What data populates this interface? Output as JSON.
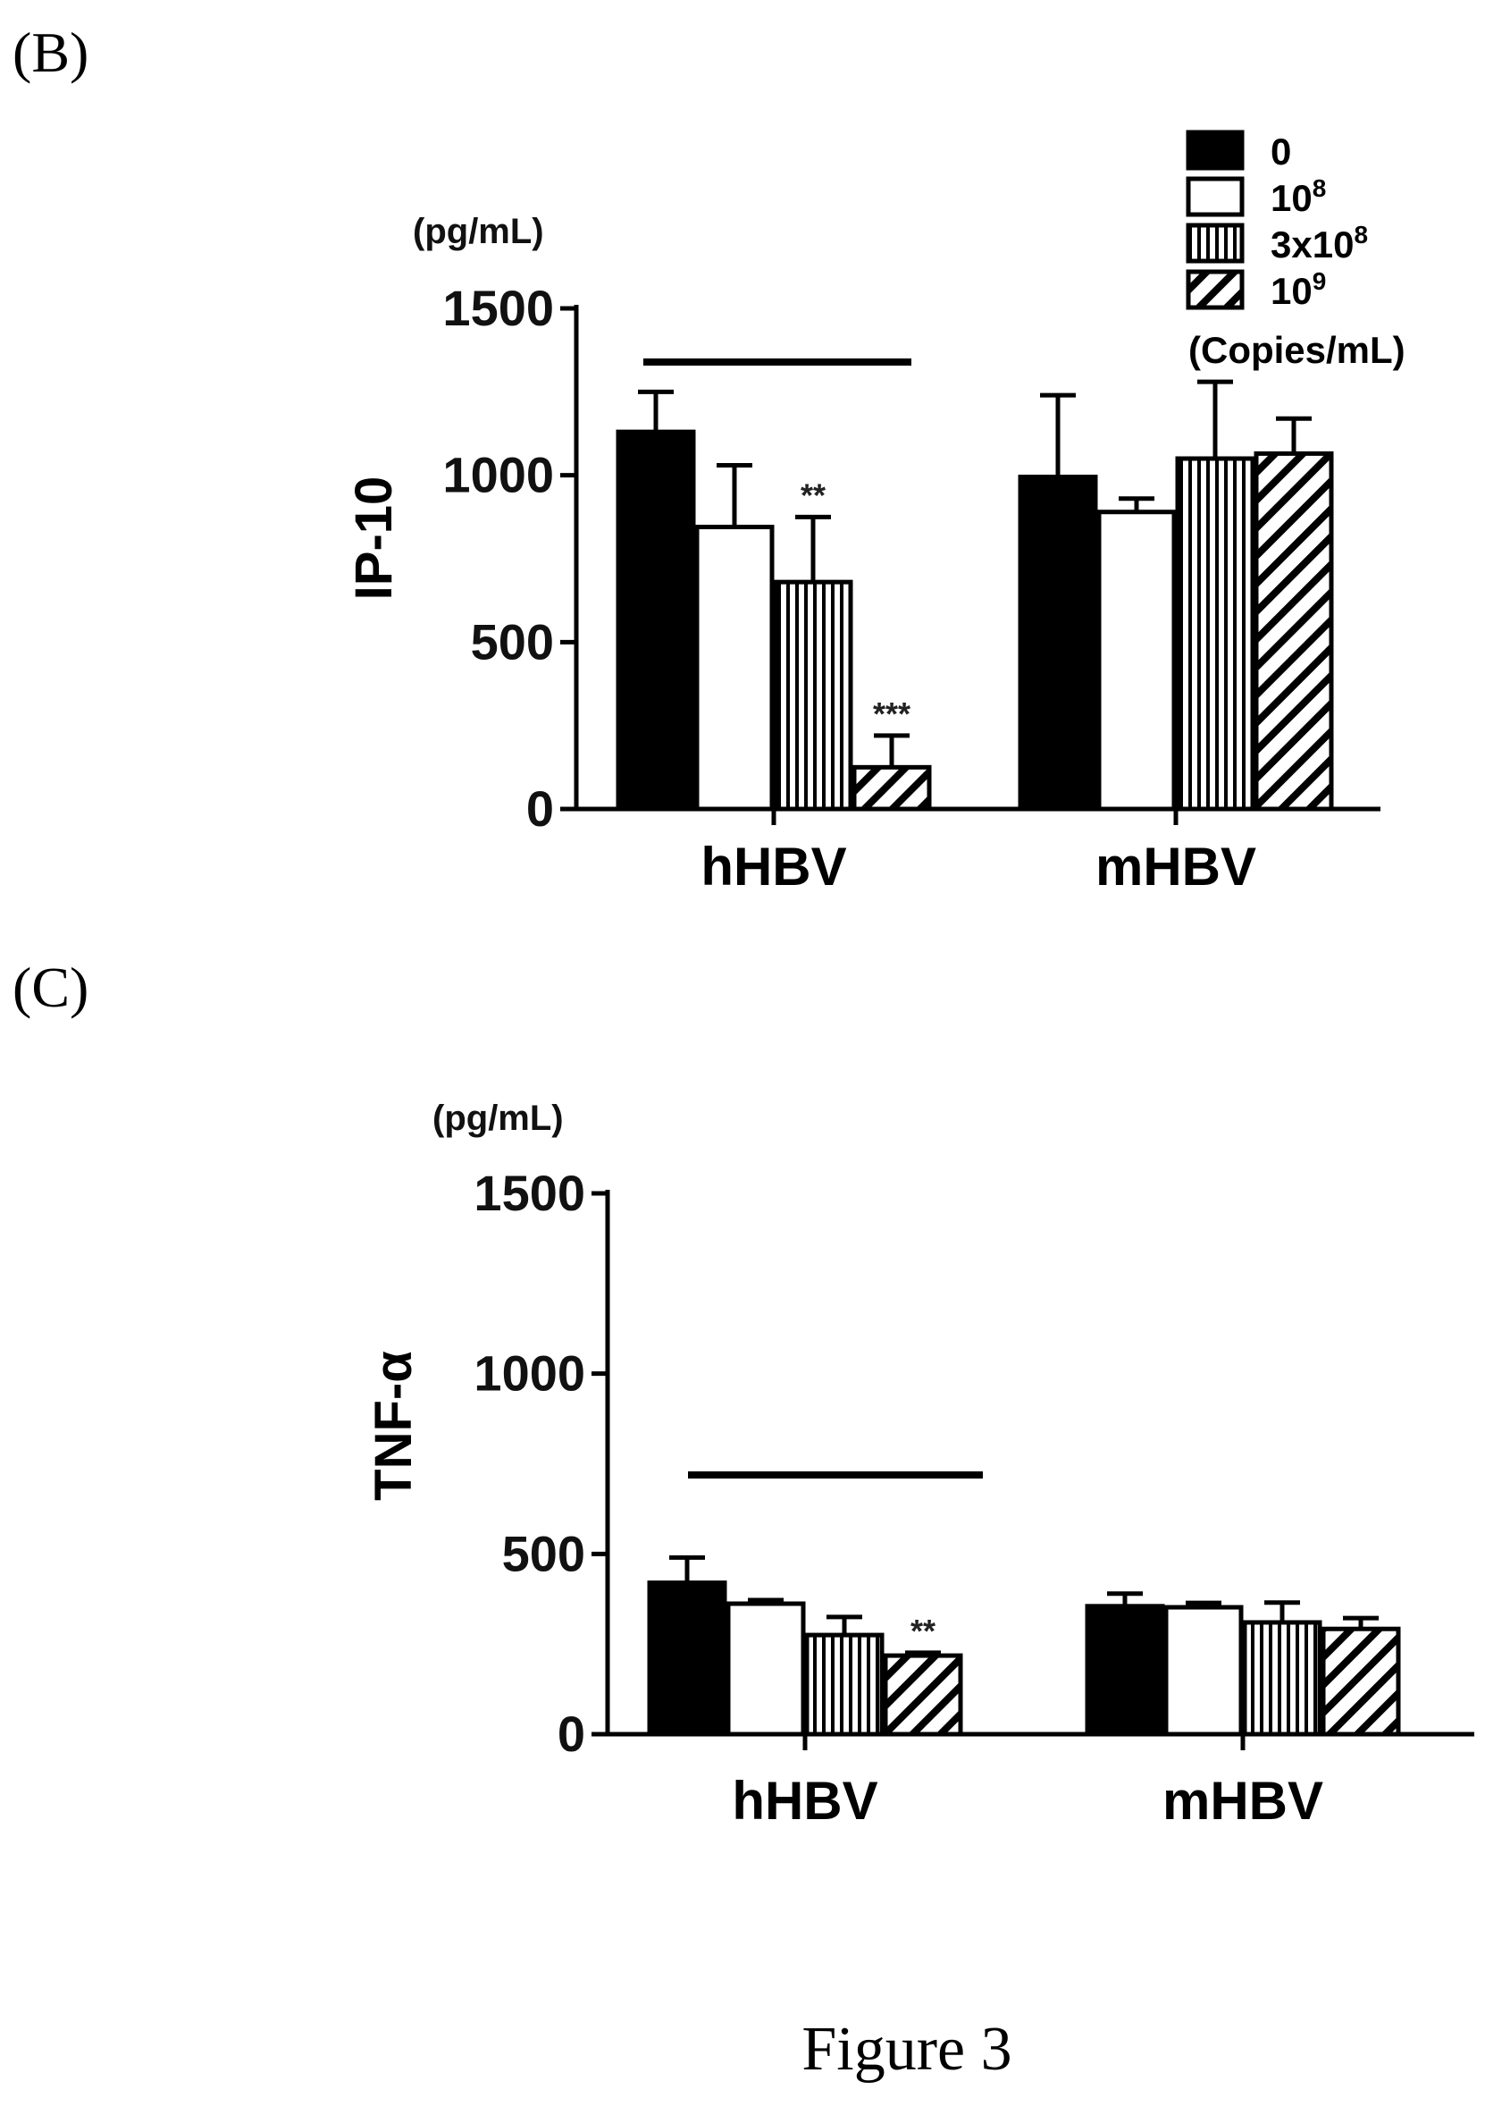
{
  "figure_caption": "Figure 3",
  "colors": {
    "ink": "#000000",
    "background": "#ffffff"
  },
  "legend": {
    "title": "(Copies/mL)",
    "entries": [
      {
        "label": "0",
        "exp": "",
        "pattern": "solid"
      },
      {
        "label": "10",
        "exp": "8",
        "pattern": "open"
      },
      {
        "label": "3x10",
        "exp": "8",
        "pattern": "vertical"
      },
      {
        "label": "10",
        "exp": "9",
        "pattern": "diagonal"
      }
    ]
  },
  "chart_data": [
    {
      "panel": "(B)",
      "type": "bar",
      "unit": "(pg/mL)",
      "ylabel": "IP-10",
      "ylim": [
        0,
        1500
      ],
      "yticks": [
        "0",
        "500",
        "1000",
        "1500"
      ],
      "categories": [
        "hHBV",
        "mHBV"
      ],
      "series": [
        {
          "name": "0",
          "values": [
            1130,
            995
          ],
          "errors": [
            120,
            245
          ]
        },
        {
          "name": "10^8",
          "values": [
            845,
            890
          ],
          "errors": [
            185,
            40
          ]
        },
        {
          "name": "3x10^8",
          "values": [
            680,
            1050
          ],
          "errors": [
            195,
            230
          ]
        },
        {
          "name": "10^9",
          "values": [
            125,
            1065
          ],
          "errors": [
            95,
            105
          ]
        }
      ],
      "significance": [
        {
          "category": "hHBV",
          "series": "3x10^8",
          "label": "**"
        },
        {
          "category": "hHBV",
          "series": "10^9",
          "label": "***"
        }
      ],
      "bracket_over": "hHBV"
    },
    {
      "panel": "(C)",
      "type": "bar",
      "unit": "(pg/mL)",
      "ylabel": "TNF-α",
      "ylim": [
        0,
        1500
      ],
      "yticks": [
        "0",
        "500",
        "1000",
        "1500"
      ],
      "categories": [
        "hHBV",
        "mHBV"
      ],
      "series": [
        {
          "name": "0",
          "values": [
            420,
            355
          ],
          "errors": [
            70,
            35
          ]
        },
        {
          "name": "10^8",
          "values": [
            362,
            352
          ],
          "errors": [
            10,
            12
          ]
        },
        {
          "name": "3x10^8",
          "values": [
            275,
            310
          ],
          "errors": [
            50,
            55
          ]
        },
        {
          "name": "10^9",
          "values": [
            218,
            292
          ],
          "errors": [
            8,
            30
          ]
        }
      ],
      "significance": [
        {
          "category": "hHBV",
          "series": "10^9",
          "label": "**"
        }
      ],
      "bracket_over": "hHBV"
    }
  ]
}
